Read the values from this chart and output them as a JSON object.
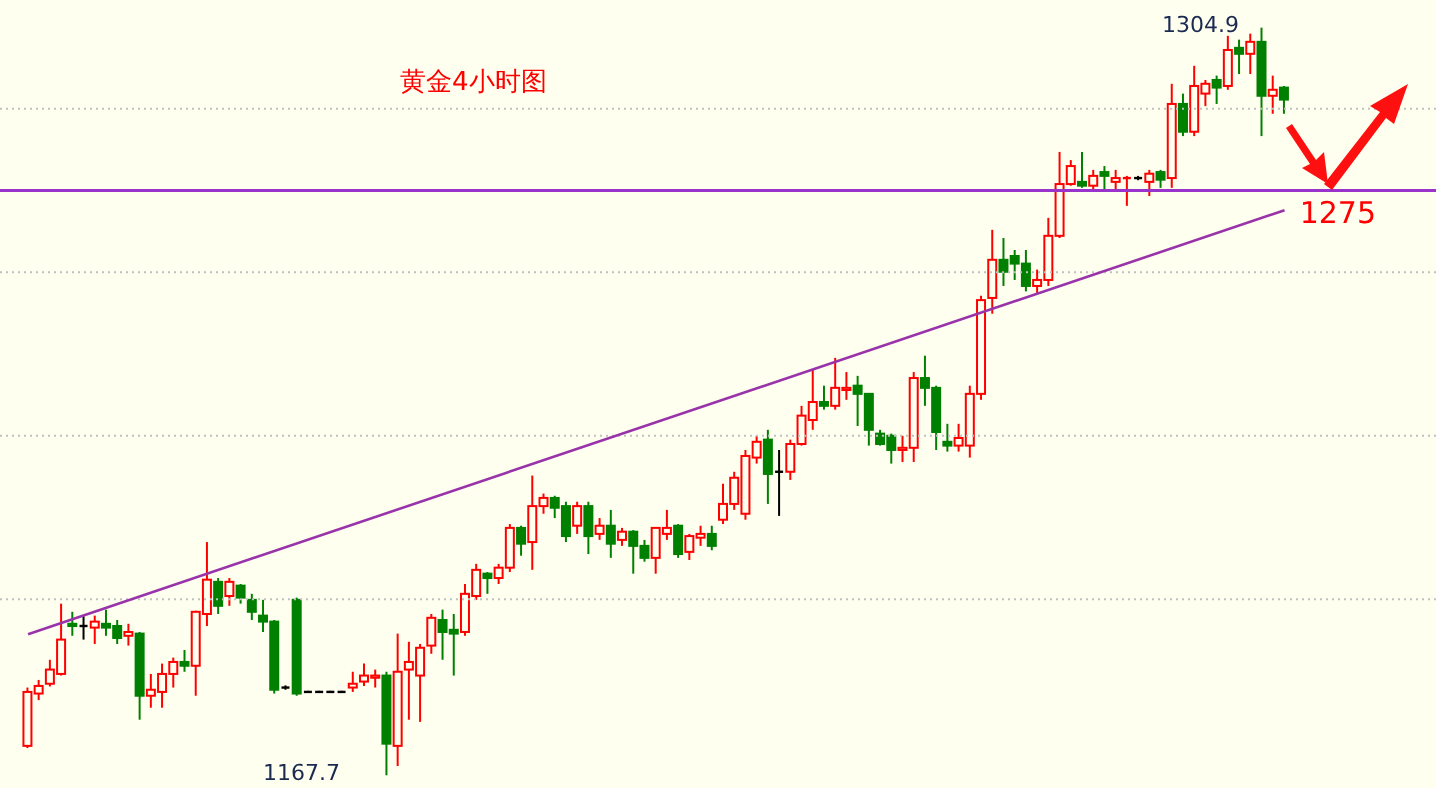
{
  "chart_data": {
    "type": "candlestick",
    "title": "黄金4小时图",
    "categories": [
      null,
      null,
      null,
      null,
      null,
      null,
      null,
      null,
      null,
      null,
      null,
      null,
      null,
      null,
      null,
      null,
      null,
      null,
      null,
      null,
      null,
      null,
      null,
      null,
      null,
      null,
      null,
      null,
      null,
      null,
      null,
      null,
      null,
      null,
      null,
      null,
      null,
      null,
      null,
      null,
      null,
      null,
      null,
      null,
      null,
      null,
      null,
      null,
      null,
      null,
      null,
      null,
      null,
      null,
      null,
      null,
      null,
      null,
      null,
      null,
      null,
      null,
      null,
      null,
      null,
      null,
      null,
      null,
      null,
      null,
      null,
      null,
      null,
      null,
      null,
      null,
      null,
      null,
      null,
      null,
      null,
      null,
      null,
      null,
      null,
      null,
      null,
      null,
      null,
      null,
      null,
      null,
      null,
      null,
      null,
      null,
      null,
      null,
      null,
      null,
      null,
      null,
      null,
      null,
      null,
      null,
      null,
      null,
      null,
      null,
      null,
      null,
      null
    ],
    "ohlc": [
      [
        1173.1,
        1183.8,
        1172.7,
        1183.0
      ],
      [
        1182.7,
        1185.2,
        1181.5,
        1184.1
      ],
      [
        1184.5,
        1188.9,
        1184.0,
        1187.1
      ],
      [
        1186.3,
        1199.2,
        1186.0,
        1192.6
      ],
      [
        1195.5,
        1197.7,
        1193.3,
        1195.1
      ],
      [
        1195.1,
        1196.9,
        1192.6,
        1195.1
      ],
      [
        1194.8,
        1197.0,
        1191.8,
        1195.9
      ],
      [
        1195.5,
        1198.1,
        1193.3,
        1194.8
      ],
      [
        1195.1,
        1196.2,
        1191.8,
        1192.9
      ],
      [
        1193.3,
        1195.5,
        1191.5,
        1194.0
      ],
      [
        1193.7,
        1194.0,
        1177.9,
        1182.3
      ],
      [
        1182.3,
        1186.3,
        1180.1,
        1183.4
      ],
      [
        1183.0,
        1188.2,
        1180.1,
        1186.3
      ],
      [
        1186.3,
        1189.3,
        1183.8,
        1188.5
      ],
      [
        1188.5,
        1190.7,
        1186.7,
        1187.8
      ],
      [
        1187.8,
        1197.9,
        1182.3,
        1197.7
      ],
      [
        1197.3,
        1210.5,
        1195.1,
        1203.6
      ],
      [
        1203.2,
        1203.9,
        1197.3,
        1198.8
      ],
      [
        1200.6,
        1203.9,
        1198.8,
        1203.2
      ],
      [
        1202.5,
        1202.8,
        1199.2,
        1200.3
      ],
      [
        1199.9,
        1201.0,
        1196.2,
        1197.7
      ],
      [
        1197.0,
        1199.9,
        1194.0,
        1195.9
      ],
      [
        1195.9,
        1196.2,
        1182.7,
        1183.4
      ],
      [
        1183.8,
        1184.2,
        1183.4,
        1183.8
      ],
      [
        1199.9,
        1200.3,
        1182.3,
        1182.7
      ],
      [
        1183.0,
        1183.2,
        1182.8,
        1183.0
      ],
      [
        1183.0,
        1183.2,
        1182.8,
        1183.0
      ],
      [
        1183.0,
        1183.2,
        1182.8,
        1183.0
      ],
      [
        1183.0,
        1183.2,
        1182.8,
        1183.0
      ],
      [
        1183.8,
        1186.7,
        1183.0,
        1184.5
      ],
      [
        1184.9,
        1188.2,
        1184.1,
        1186.0
      ],
      [
        1185.6,
        1187.1,
        1183.8,
        1186.0
      ],
      [
        1186.0,
        1186.7,
        1167.7,
        1173.5
      ],
      [
        1173.1,
        1193.7,
        1169.4,
        1186.7
      ],
      [
        1187.1,
        1192.2,
        1177.9,
        1188.5
      ],
      [
        1186.0,
        1191.8,
        1177.5,
        1191.1
      ],
      [
        1191.5,
        1197.3,
        1190.0,
        1196.6
      ],
      [
        1196.2,
        1198.1,
        1188.9,
        1194.0
      ],
      [
        1194.4,
        1197.3,
        1186.0,
        1193.7
      ],
      [
        1194.0,
        1202.8,
        1193.3,
        1201.0
      ],
      [
        1200.6,
        1206.5,
        1199.9,
        1205.4
      ],
      [
        1204.7,
        1205.0,
        1201.0,
        1203.9
      ],
      [
        1203.9,
        1206.5,
        1202.8,
        1205.8
      ],
      [
        1205.8,
        1213.8,
        1205.0,
        1213.1
      ],
      [
        1213.1,
        1213.5,
        1208.0,
        1210.2
      ],
      [
        1210.5,
        1222.7,
        1205.4,
        1217.1
      ],
      [
        1217.1,
        1219.4,
        1215.7,
        1218.6
      ],
      [
        1218.6,
        1219.0,
        1214.9,
        1216.8
      ],
      [
        1217.1,
        1217.9,
        1210.5,
        1211.6
      ],
      [
        1213.5,
        1217.9,
        1212.0,
        1217.1
      ],
      [
        1217.1,
        1217.9,
        1208.3,
        1211.6
      ],
      [
        1212.0,
        1214.9,
        1210.9,
        1213.5
      ],
      [
        1213.5,
        1216.4,
        1207.6,
        1210.2
      ],
      [
        1210.9,
        1213.1,
        1209.8,
        1212.4
      ],
      [
        1212.4,
        1212.7,
        1204.7,
        1209.8
      ],
      [
        1209.8,
        1210.9,
        1206.9,
        1207.6
      ],
      [
        1207.6,
        1213.1,
        1204.7,
        1213.1
      ],
      [
        1212.0,
        1216.4,
        1210.9,
        1213.1
      ],
      [
        1213.5,
        1213.8,
        1207.6,
        1208.3
      ],
      [
        1208.7,
        1212.0,
        1207.2,
        1211.6
      ],
      [
        1211.3,
        1213.5,
        1209.8,
        1212.0
      ],
      [
        1212.0,
        1213.5,
        1209.0,
        1209.8
      ],
      [
        1214.6,
        1221.2,
        1213.8,
        1217.5
      ],
      [
        1217.5,
        1223.4,
        1216.4,
        1222.3
      ],
      [
        1215.7,
        1227.4,
        1214.6,
        1226.3
      ],
      [
        1226.0,
        1230.0,
        1224.9,
        1228.9
      ],
      [
        1229.3,
        1231.1,
        1217.5,
        1223.0
      ],
      [
        1223.4,
        1227.4,
        1215.3,
        1223.4
      ],
      [
        1223.4,
        1229.3,
        1221.9,
        1228.5
      ],
      [
        1228.5,
        1235.5,
        1228.2,
        1233.7
      ],
      [
        1232.9,
        1242.1,
        1231.1,
        1236.2
      ],
      [
        1236.2,
        1239.2,
        1234.8,
        1235.5
      ],
      [
        1235.5,
        1244.3,
        1234.8,
        1238.8
      ],
      [
        1238.4,
        1241.7,
        1236.6,
        1238.8
      ],
      [
        1239.2,
        1241.0,
        1231.8,
        1237.7
      ],
      [
        1237.7,
        1237.7,
        1228.2,
        1231.1
      ],
      [
        1230.4,
        1231.1,
        1228.2,
        1228.5
      ],
      [
        1230.0,
        1230.4,
        1224.9,
        1227.4
      ],
      [
        1227.4,
        1230.0,
        1225.2,
        1227.8
      ],
      [
        1227.8,
        1241.7,
        1225.2,
        1240.6
      ],
      [
        1240.6,
        1244.7,
        1235.5,
        1238.8
      ],
      [
        1238.8,
        1239.2,
        1227.4,
        1230.7
      ],
      [
        1228.9,
        1232.2,
        1227.1,
        1228.2
      ],
      [
        1228.2,
        1232.2,
        1227.1,
        1229.6
      ],
      [
        1228.2,
        1239.2,
        1226.0,
        1237.7
      ],
      [
        1237.7,
        1255.7,
        1236.6,
        1254.9
      ],
      [
        1255.3,
        1267.8,
        1252.4,
        1262.3
      ],
      [
        1262.3,
        1266.3,
        1257.5,
        1260.1
      ],
      [
        1263.0,
        1264.1,
        1258.6,
        1261.6
      ],
      [
        1261.6,
        1264.1,
        1256.5,
        1257.5
      ],
      [
        1257.5,
        1260.5,
        1256.1,
        1258.6
      ],
      [
        1258.6,
        1270.0,
        1257.5,
        1266.7
      ],
      [
        1266.7,
        1282.1,
        1266.3,
        1276.2
      ],
      [
        1276.2,
        1280.6,
        1275.9,
        1279.5
      ],
      [
        1276.6,
        1282.1,
        1275.5,
        1275.9
      ],
      [
        1275.9,
        1278.8,
        1275.1,
        1277.7
      ],
      [
        1278.4,
        1279.5,
        1274.8,
        1277.7
      ],
      [
        1276.6,
        1278.8,
        1275.1,
        1277.3
      ],
      [
        1277.0,
        1277.7,
        1272.2,
        1277.3
      ],
      [
        1277.3,
        1277.7,
        1276.9,
        1277.3
      ],
      [
        1276.6,
        1278.8,
        1274.0,
        1278.1
      ],
      [
        1278.4,
        1278.8,
        1275.5,
        1277.0
      ],
      [
        1277.3,
        1294.6,
        1275.5,
        1290.9
      ],
      [
        1290.9,
        1292.8,
        1285.0,
        1285.8
      ],
      [
        1285.8,
        1297.9,
        1285.0,
        1294.2
      ],
      [
        1292.8,
        1295.3,
        1290.5,
        1294.6
      ],
      [
        1295.3,
        1296.1,
        1290.9,
        1293.9
      ],
      [
        1294.2,
        1303.4,
        1293.5,
        1300.8
      ],
      [
        1301.2,
        1302.7,
        1296.4,
        1300.1
      ],
      [
        1300.1,
        1303.8,
        1296.4,
        1302.3
      ],
      [
        1302.3,
        1304.9,
        1285.0,
        1292.4
      ],
      [
        1292.4,
        1296.1,
        1289.1,
        1293.5
      ],
      [
        1293.9,
        1294.2,
        1289.1,
        1291.7
      ]
    ],
    "colors": [
      "#ff0000",
      "#ff0000",
      "#ff0000",
      "#ff0000",
      "#008000",
      "#000000",
      "#ff0000",
      "#008000",
      "#008000",
      "#ff0000",
      "#008000",
      "#ff0000",
      "#ff0000",
      "#ff0000",
      "#008000",
      "#ff0000",
      "#ff0000",
      "#008000",
      "#ff0000",
      "#008000",
      "#008000",
      "#008000",
      "#008000",
      "#000000",
      "#008000",
      "#000000",
      "#000000",
      "#000000",
      "#000000",
      "#ff0000",
      "#ff0000",
      "#ff0000",
      "#008000",
      "#ff0000",
      "#ff0000",
      "#ff0000",
      "#ff0000",
      "#008000",
      "#008000",
      "#ff0000",
      "#ff0000",
      "#008000",
      "#ff0000",
      "#ff0000",
      "#008000",
      "#ff0000",
      "#ff0000",
      "#008000",
      "#008000",
      "#ff0000",
      "#008000",
      "#ff0000",
      "#008000",
      "#ff0000",
      "#008000",
      "#008000",
      "#ff0000",
      "#ff0000",
      "#008000",
      "#ff0000",
      "#ff0000",
      "#008000",
      "#ff0000",
      "#ff0000",
      "#ff0000",
      "#ff0000",
      "#008000",
      "#000000",
      "#ff0000",
      "#ff0000",
      "#ff0000",
      "#008000",
      "#ff0000",
      "#ff0000",
      "#008000",
      "#008000",
      "#008000",
      "#008000",
      "#ff0000",
      "#ff0000",
      "#008000",
      "#008000",
      "#008000",
      "#ff0000",
      "#ff0000",
      "#ff0000",
      "#ff0000",
      "#008000",
      "#008000",
      "#008000",
      "#ff0000",
      "#ff0000",
      "#ff0000",
      "#ff0000",
      "#008000",
      "#ff0000",
      "#008000",
      "#ff0000",
      "#ff0000",
      "#000000",
      "#ff0000",
      "#008000",
      "#ff0000",
      "#008000",
      "#ff0000",
      "#ff0000",
      "#008000",
      "#ff0000",
      "#008000",
      "#ff0000",
      "#008000",
      "#ff0000",
      "#008000"
    ],
    "series": [
      {
        "type": "line",
        "color": "#9933aa",
        "values": [
          1193.6,
          null,
          null,
          null,
          null,
          null,
          null,
          null,
          null,
          null,
          null,
          null,
          null,
          null,
          null,
          null,
          null,
          null,
          null,
          null,
          null,
          null,
          null,
          null,
          null,
          null,
          null,
          null,
          null,
          null,
          null,
          null,
          null,
          null,
          null,
          null,
          null,
          null,
          null,
          null,
          null,
          null,
          null,
          null,
          null,
          null,
          null,
          null,
          null,
          null,
          null,
          null,
          null,
          null,
          null,
          null,
          null,
          null,
          null,
          null,
          null,
          null,
          null,
          null,
          null,
          null,
          null,
          null,
          null,
          null,
          null,
          null,
          null,
          null,
          null,
          null,
          null,
          null,
          null,
          null,
          null,
          null,
          null,
          null,
          null,
          null,
          null,
          null,
          null,
          null,
          null,
          null,
          null,
          null,
          null,
          null,
          null,
          null,
          null,
          null,
          null,
          null,
          null,
          null,
          null,
          null,
          null,
          null,
          null,
          null,
          null,
          null,
          1271.4
        ]
      }
    ],
    "ref_lines": [
      {
        "axis": "y",
        "value": 1275,
        "label": "1275",
        "color": "#9933cc"
      }
    ],
    "yticks": [
      {
        "value": 1200,
        "label": null
      },
      {
        "value": 1230,
        "label": null
      },
      {
        "value": 1260,
        "label": null
      },
      {
        "value": 1290,
        "label": null
      }
    ],
    "grid": "y",
    "tick_labels": false,
    "annotations": [
      "1304.9",
      "1167.7"
    ]
  }
}
